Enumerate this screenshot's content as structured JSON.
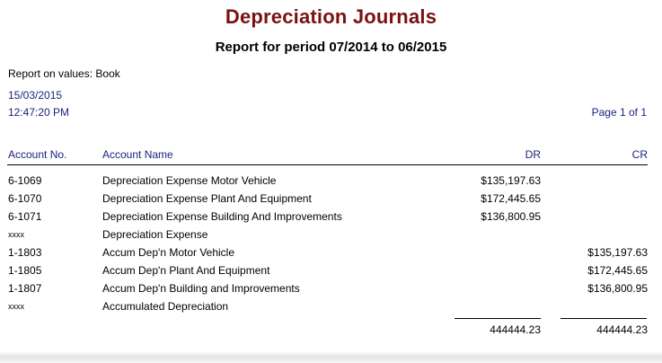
{
  "report": {
    "title": "Depreciation Journals",
    "subtitle": "Report for period 07/2014 to 06/2015",
    "report_on": "Report on values: Book",
    "date": "15/03/2015",
    "time": "12:47:20 PM",
    "page": "Page 1 of 1"
  },
  "table": {
    "headers": {
      "account_no": "Account No.",
      "account_name": "Account Name",
      "dr": "DR",
      "cr": "CR"
    },
    "rows": [
      {
        "account_no": "6-1069",
        "account_name": "Depreciation Expense Motor Vehicle",
        "dr": "$135,197.63",
        "cr": ""
      },
      {
        "account_no": "6-1070",
        "account_name": "Depreciation Expense Plant And Equipment",
        "dr": "$172,445.65",
        "cr": ""
      },
      {
        "account_no": "6-1071",
        "account_name": "Depreciation Expense Building And Improvements",
        "dr": "$136,800.95",
        "cr": ""
      },
      {
        "account_no": "xxxx",
        "account_name": "Depreciation Expense",
        "dr": "",
        "cr": ""
      },
      {
        "account_no": "1-1803",
        "account_name": "Accum Dep'n Motor Vehicle",
        "dr": "",
        "cr": "$135,197.63"
      },
      {
        "account_no": "1-1805",
        "account_name": "Accum Dep'n Plant And Equipment",
        "dr": "",
        "cr": "$172,445.65"
      },
      {
        "account_no": "1-1807",
        "account_name": "Accum Dep'n Building and Improvements",
        "dr": "",
        "cr": "$136,800.95"
      },
      {
        "account_no": "xxxx",
        "account_name": "Accumulated Depreciation",
        "dr": "",
        "cr": ""
      }
    ],
    "totals": {
      "dr": "444444.23",
      "cr": "444444.23"
    }
  }
}
